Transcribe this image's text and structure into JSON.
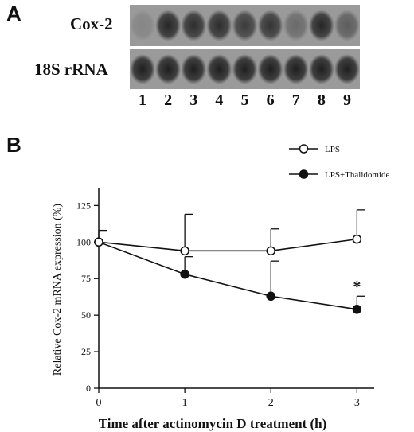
{
  "panel_a": {
    "label": "A",
    "rows": [
      {
        "label": "Cox-2",
        "band_intensity": [
          0.15,
          0.85,
          0.8,
          0.8,
          0.7,
          0.75,
          0.35,
          0.85,
          0.45
        ]
      },
      {
        "label": "18S rRNA",
        "band_intensity": [
          0.9,
          0.9,
          0.9,
          0.9,
          0.9,
          0.9,
          0.9,
          0.9,
          0.9
        ]
      }
    ],
    "lanes": [
      "1",
      "2",
      "3",
      "4",
      "5",
      "6",
      "7",
      "8",
      "9"
    ]
  },
  "panel_b": {
    "label": "B"
  },
  "chart_data": {
    "type": "line",
    "title": "",
    "xlabel": "Time after actinomycin D treatment (h)",
    "ylabel": "Relative Cox-2 mRNA expression (%)",
    "x": [
      0,
      1,
      2,
      3
    ],
    "xticks": [
      "0",
      "1",
      "2",
      "3"
    ],
    "xlim": [
      0,
      3.2
    ],
    "yticks": [
      "0",
      "25",
      "50",
      "75",
      "100",
      "125"
    ],
    "ylim": [
      0,
      135
    ],
    "legend_position": "top-right",
    "series": [
      {
        "name": "LPS",
        "marker": "open-circle",
        "values": [
          100,
          94,
          94,
          102
        ],
        "error": [
          8,
          25,
          15,
          20
        ]
      },
      {
        "name": "LPS+Thalidomide",
        "marker": "filled-circle",
        "values": [
          100,
          78,
          63,
          54
        ],
        "error": [
          0,
          12,
          24,
          9
        ]
      }
    ],
    "annotations": [
      {
        "text": "*",
        "x": 3
      }
    ]
  }
}
